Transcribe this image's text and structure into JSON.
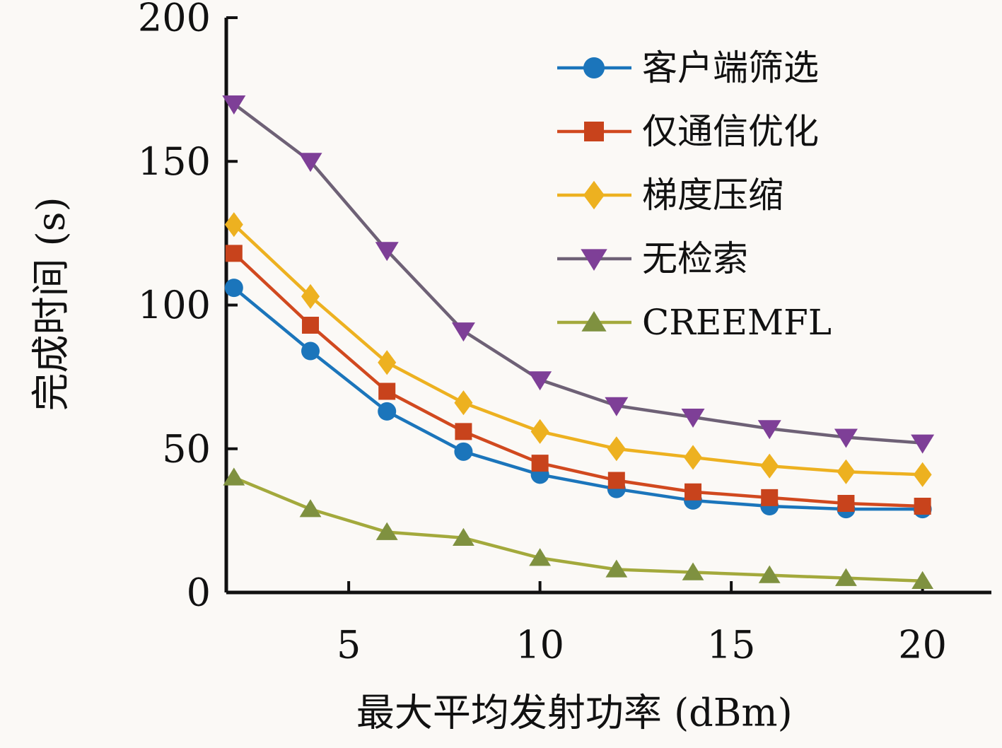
{
  "chart_data": {
    "type": "line",
    "title": "",
    "xlabel": "最大平均发射功率 (dBm)",
    "ylabel": "完成时间 (s)",
    "x": [
      2,
      4,
      6,
      8,
      10,
      12,
      14,
      16,
      18,
      20
    ],
    "x_ticks": [
      5,
      10,
      15,
      20
    ],
    "y_ticks": [
      0,
      50,
      100,
      150,
      200
    ],
    "xlim": [
      1.8,
      21.8
    ],
    "ylim": [
      0,
      200
    ],
    "grid": false,
    "legend_position": "top-right",
    "axis_color": "#111111",
    "background": "#fbf9f6",
    "series": [
      {
        "name": "客户端筛选",
        "marker": "circle",
        "line_color": "#1b75bb",
        "marker_color": "#1b75bb",
        "values": [
          106,
          84,
          63,
          49,
          41,
          36,
          32,
          30,
          29,
          29
        ]
      },
      {
        "name": "仅通信优化",
        "marker": "square",
        "line_color": "#d1491f",
        "marker_color": "#c8431c",
        "values": [
          118,
          93,
          70,
          56,
          45,
          39,
          35,
          33,
          31,
          30
        ]
      },
      {
        "name": "梯度压缩",
        "marker": "diamond",
        "line_color": "#edb120",
        "marker_color": "#edb120",
        "values": [
          128,
          103,
          80,
          66,
          56,
          50,
          47,
          44,
          42,
          41
        ]
      },
      {
        "name": "无检索",
        "marker": "triangle-down",
        "line_color": "#6e6176",
        "marker_color": "#7e3f97",
        "values": [
          170,
          150,
          119,
          91,
          74,
          65,
          61,
          57,
          54,
          52
        ]
      },
      {
        "name": "CREEMFL",
        "marker": "triangle-up",
        "line_color": "#a3a93c",
        "marker_color": "#7f9140",
        "values": [
          40,
          29,
          21,
          19,
          12,
          8,
          7,
          6,
          5,
          4
        ]
      }
    ]
  }
}
